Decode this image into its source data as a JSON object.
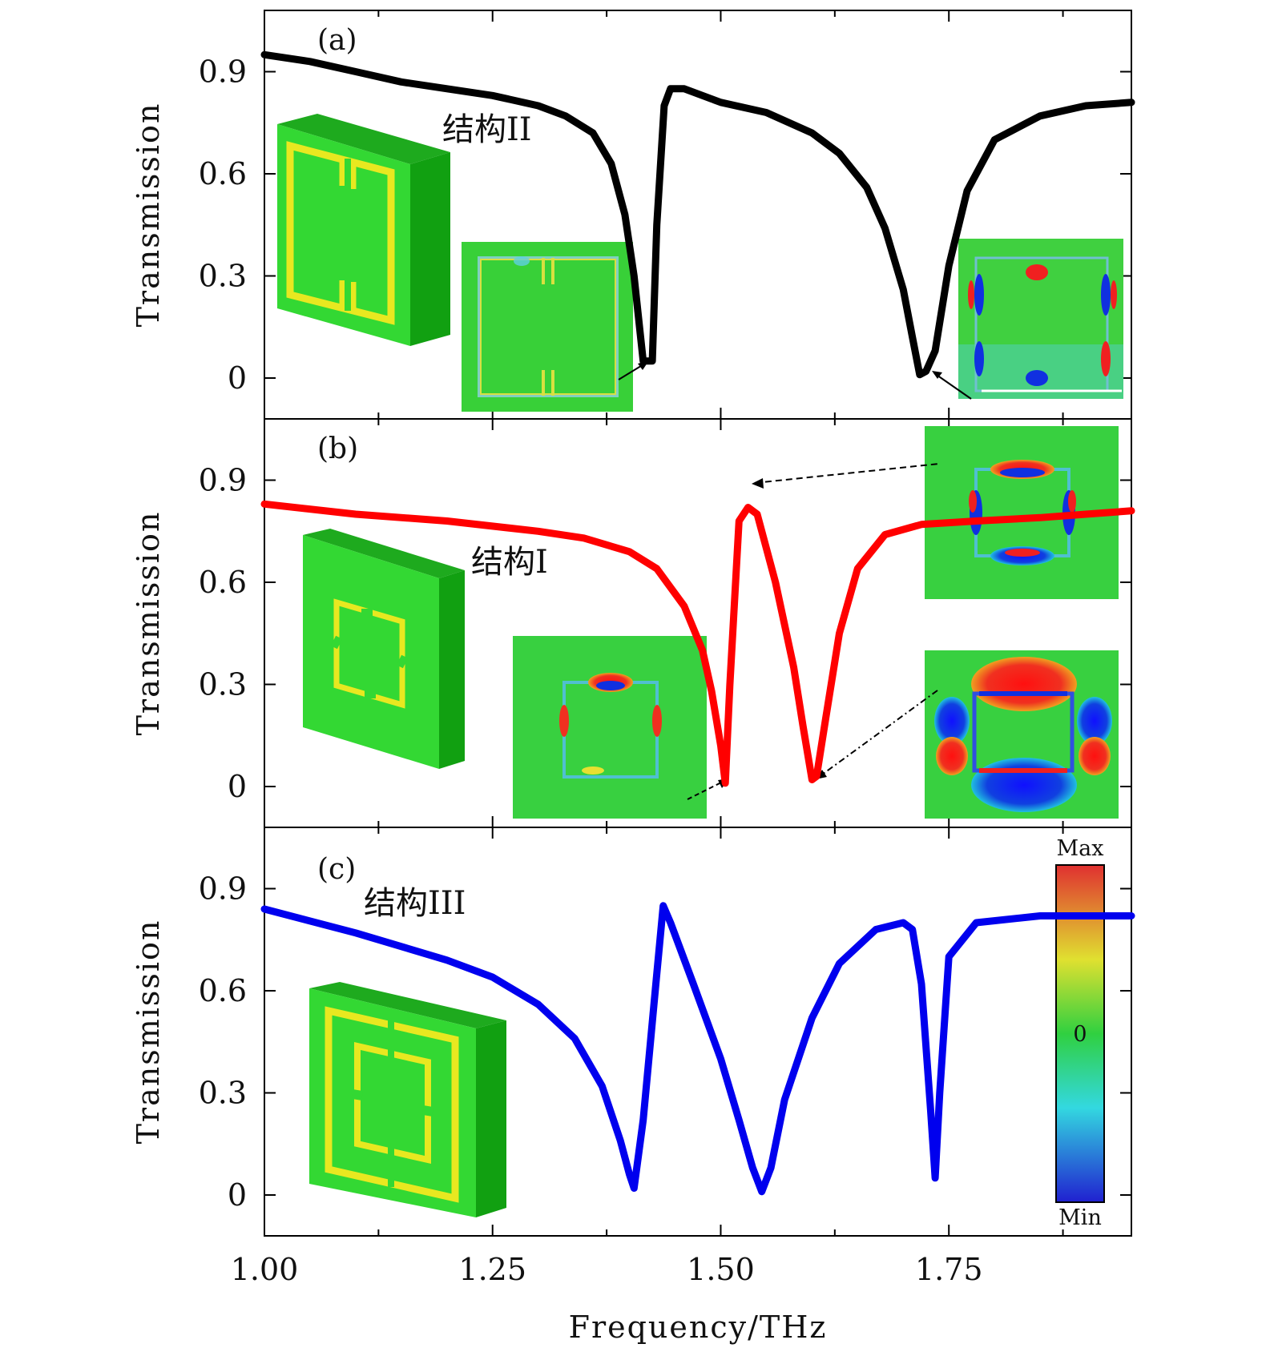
{
  "chart_data": [
    {
      "panel": "(a)",
      "type": "line",
      "structure_label": "结构II",
      "xlabel": "Frequency/THz",
      "ylabel": "Transmission",
      "xlim": [
        1.0,
        1.95
      ],
      "ylim": [
        -0.12,
        1.08
      ],
      "yticks": [
        0,
        0.3,
        0.6,
        0.9
      ],
      "ytick_labels": [
        "0",
        "0.3",
        "0.6",
        "0.9"
      ],
      "series": [
        {
          "name": "结构II",
          "color": "#000000",
          "x": [
            1.0,
            1.05,
            1.1,
            1.15,
            1.2,
            1.25,
            1.3,
            1.33,
            1.36,
            1.38,
            1.395,
            1.405,
            1.415,
            1.425,
            1.43,
            1.438,
            1.445,
            1.46,
            1.48,
            1.5,
            1.55,
            1.6,
            1.63,
            1.66,
            1.68,
            1.7,
            1.71,
            1.718,
            1.725,
            1.735,
            1.75,
            1.77,
            1.8,
            1.85,
            1.9,
            1.95
          ],
          "y": [
            0.95,
            0.93,
            0.9,
            0.87,
            0.85,
            0.83,
            0.8,
            0.77,
            0.72,
            0.63,
            0.48,
            0.3,
            0.05,
            0.05,
            0.45,
            0.8,
            0.85,
            0.85,
            0.83,
            0.81,
            0.78,
            0.72,
            0.66,
            0.56,
            0.44,
            0.26,
            0.12,
            0.01,
            0.02,
            0.08,
            0.33,
            0.55,
            0.7,
            0.77,
            0.8,
            0.81
          ]
        }
      ]
    },
    {
      "panel": "(b)",
      "type": "line",
      "structure_label": "结构I",
      "xlabel": "Frequency/THz",
      "ylabel": "Transmission",
      "xlim": [
        1.0,
        1.95
      ],
      "ylim": [
        -0.12,
        1.08
      ],
      "yticks": [
        0,
        0.3,
        0.6,
        0.9
      ],
      "ytick_labels": [
        "0",
        "0.3",
        "0.6",
        "0.9"
      ],
      "series": [
        {
          "name": "结构I",
          "color": "#ff0000",
          "x": [
            1.0,
            1.1,
            1.2,
            1.3,
            1.35,
            1.4,
            1.43,
            1.46,
            1.48,
            1.49,
            1.5,
            1.505,
            1.51,
            1.52,
            1.53,
            1.54,
            1.56,
            1.58,
            1.59,
            1.6,
            1.605,
            1.615,
            1.63,
            1.65,
            1.68,
            1.72,
            1.78,
            1.85,
            1.9,
            1.95
          ],
          "y": [
            0.83,
            0.8,
            0.78,
            0.75,
            0.73,
            0.69,
            0.64,
            0.53,
            0.4,
            0.28,
            0.12,
            0.01,
            0.3,
            0.78,
            0.82,
            0.8,
            0.6,
            0.35,
            0.18,
            0.02,
            0.03,
            0.2,
            0.45,
            0.64,
            0.74,
            0.77,
            0.78,
            0.79,
            0.8,
            0.81
          ]
        }
      ]
    },
    {
      "panel": "(c)",
      "type": "line",
      "structure_label": "结构III",
      "xlabel": "Frequency/THz",
      "ylabel": "Transmission",
      "xlim": [
        1.0,
        1.95
      ],
      "ylim": [
        -0.12,
        1.08
      ],
      "xticks": [
        1.0,
        1.25,
        1.5,
        1.75
      ],
      "xtick_labels": [
        "1.00",
        "1.25",
        "1.50",
        "1.75"
      ],
      "yticks": [
        0,
        0.3,
        0.6,
        0.9
      ],
      "ytick_labels": [
        "0",
        "0.3",
        "0.6",
        "0.9"
      ],
      "series": [
        {
          "name": "结构III",
          "color": "#0000ee",
          "x": [
            1.0,
            1.1,
            1.2,
            1.25,
            1.3,
            1.34,
            1.37,
            1.39,
            1.4,
            1.405,
            1.415,
            1.43,
            1.437,
            1.445,
            1.47,
            1.5,
            1.52,
            1.535,
            1.545,
            1.555,
            1.57,
            1.6,
            1.63,
            1.67,
            1.7,
            1.71,
            1.72,
            1.73,
            1.735,
            1.74,
            1.75,
            1.78,
            1.85,
            1.9,
            1.95
          ],
          "y": [
            0.84,
            0.77,
            0.69,
            0.64,
            0.56,
            0.46,
            0.32,
            0.16,
            0.06,
            0.02,
            0.22,
            0.65,
            0.85,
            0.8,
            0.62,
            0.4,
            0.22,
            0.08,
            0.01,
            0.08,
            0.28,
            0.52,
            0.68,
            0.78,
            0.8,
            0.78,
            0.62,
            0.25,
            0.05,
            0.3,
            0.7,
            0.8,
            0.82,
            0.82,
            0.82
          ]
        }
      ]
    }
  ],
  "colorbar": {
    "max_label": "Max",
    "zero_label": "0",
    "min_label": "Min"
  },
  "colors": {
    "structure_green": "#22dd22",
    "metal_yellow": "#eeee22",
    "field_red": "#ee2222",
    "field_blue": "#1133ee"
  }
}
